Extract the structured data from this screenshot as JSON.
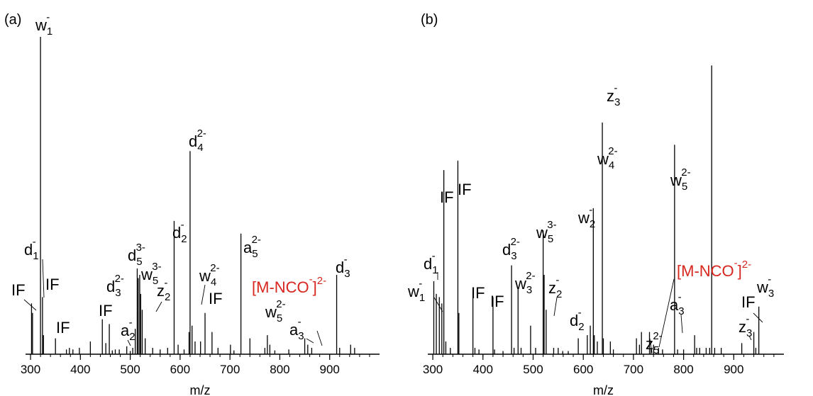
{
  "chart_data": [
    {
      "type": "bar",
      "panel_label": "(a)",
      "xlabel": "m/z",
      "ylabel": "",
      "xlim": [
        290,
        1000
      ],
      "ylim": [
        0,
        100
      ],
      "xticks": [
        300,
        400,
        500,
        600,
        700,
        800,
        900
      ],
      "peaks": [
        [
          302,
          16
        ],
        [
          304,
          13
        ],
        [
          320,
          100
        ],
        [
          324,
          18
        ],
        [
          326,
          6
        ],
        [
          350,
          5
        ],
        [
          372,
          1.5
        ],
        [
          378,
          2
        ],
        [
          385,
          1.5
        ],
        [
          398,
          2
        ],
        [
          420,
          4
        ],
        [
          444,
          11
        ],
        [
          451,
          3.5
        ],
        [
          458,
          9.5
        ],
        [
          464,
          1.2
        ],
        [
          470,
          1.5
        ],
        [
          478,
          1.5
        ],
        [
          493,
          2.5
        ],
        [
          500,
          1
        ],
        [
          505,
          2
        ],
        [
          510,
          8
        ],
        [
          514,
          27
        ],
        [
          516,
          24
        ],
        [
          519,
          25
        ],
        [
          521,
          19
        ],
        [
          524,
          14
        ],
        [
          530,
          5
        ],
        [
          545,
          2
        ],
        [
          560,
          1.5
        ],
        [
          575,
          2
        ],
        [
          588,
          42
        ],
        [
          596,
          3
        ],
        [
          608,
          1.5
        ],
        [
          618,
          7
        ],
        [
          620,
          64
        ],
        [
          624,
          9
        ],
        [
          630,
          4
        ],
        [
          641,
          4
        ],
        [
          650,
          13
        ],
        [
          664,
          7
        ],
        [
          676,
          2
        ],
        [
          701,
          3
        ],
        [
          708,
          1.2
        ],
        [
          722,
          38
        ],
        [
          740,
          5
        ],
        [
          770,
          2
        ],
        [
          775,
          6
        ],
        [
          780,
          3
        ],
        [
          790,
          1.2
        ],
        [
          818,
          1.5
        ],
        [
          850,
          5
        ],
        [
          856,
          3
        ],
        [
          864,
          2
        ],
        [
          914,
          25
        ],
        [
          920,
          2
        ],
        [
          942,
          3
        ],
        [
          950,
          2
        ]
      ],
      "annotations": [
        {
          "base": "w",
          "sub": "1",
          "sup": "-"
        },
        {
          "base": "d",
          "sub": "1",
          "sup": "-"
        },
        {
          "base": "IF",
          "sub": "",
          "sup": ""
        },
        {
          "base": "IF",
          "sub": "",
          "sup": ""
        },
        {
          "base": "IF",
          "sub": "",
          "sup": ""
        },
        {
          "base": "IF",
          "sub": "",
          "sup": ""
        },
        {
          "base": "d",
          "sub": "3",
          "sup": "2-"
        },
        {
          "base": "a",
          "sub": "2",
          "sup": "-"
        },
        {
          "base": "d",
          "sub": "5",
          "sup": "3-"
        },
        {
          "base": "w",
          "sub": "5",
          "sup": "3-"
        },
        {
          "base": "z",
          "sub": "2",
          "sup": "-"
        },
        {
          "base": "d",
          "sub": "2",
          "sup": "-"
        },
        {
          "base": "d",
          "sub": "4",
          "sup": "2-"
        },
        {
          "base": "w",
          "sub": "4",
          "sup": "2-"
        },
        {
          "base": "IF",
          "sub": "",
          "sup": ""
        },
        {
          "base": "a",
          "sub": "5",
          "sup": "2-"
        },
        {
          "base": "[M-NCO",
          "sub": "",
          "sup": "-",
          "tail": "]",
          "tailsup": "2-",
          "color": "#d7261e"
        },
        {
          "base": "w",
          "sub": "5",
          "sup": "2-"
        },
        {
          "base": "a",
          "sub": "3",
          "sup": "-"
        },
        {
          "base": "d",
          "sub": "3",
          "sup": "-"
        }
      ]
    },
    {
      "type": "bar",
      "panel_label": "(b)",
      "xlabel": "m/z",
      "ylabel": "",
      "xlim": [
        290,
        1000
      ],
      "ylim": [
        0,
        100
      ],
      "xticks": [
        300,
        400,
        500,
        600,
        700,
        800,
        900
      ],
      "peaks": [
        [
          302,
          23
        ],
        [
          307,
          19
        ],
        [
          313,
          18
        ],
        [
          318,
          16
        ],
        [
          322,
          58
        ],
        [
          326,
          4
        ],
        [
          335,
          2
        ],
        [
          350,
          61
        ],
        [
          352,
          13
        ],
        [
          380,
          20
        ],
        [
          384,
          2
        ],
        [
          392,
          1.5
        ],
        [
          420,
          18
        ],
        [
          423,
          1.5
        ],
        [
          440,
          1
        ],
        [
          457,
          28
        ],
        [
          462,
          2
        ],
        [
          470,
          21
        ],
        [
          476,
          2
        ],
        [
          495,
          9
        ],
        [
          505,
          2
        ],
        [
          520,
          39
        ],
        [
          522,
          25
        ],
        [
          526,
          14
        ],
        [
          541,
          2
        ],
        [
          550,
          2
        ],
        [
          559,
          1
        ],
        [
          570,
          1
        ],
        [
          590,
          5
        ],
        [
          608,
          6
        ],
        [
          614,
          9
        ],
        [
          620,
          46
        ],
        [
          622,
          6
        ],
        [
          628,
          4
        ],
        [
          638,
          73
        ],
        [
          640,
          5
        ],
        [
          654,
          4
        ],
        [
          660,
          1.5
        ],
        [
          706,
          5
        ],
        [
          712,
          3
        ],
        [
          716,
          7
        ],
        [
          732,
          7
        ],
        [
          735,
          2
        ],
        [
          740,
          3
        ],
        [
          750,
          2
        ],
        [
          758,
          1.5
        ],
        [
          782,
          66
        ],
        [
          788,
          1.5
        ],
        [
          800,
          1.5
        ],
        [
          822,
          6
        ],
        [
          826,
          2
        ],
        [
          832,
          2
        ],
        [
          845,
          2
        ],
        [
          852,
          2
        ],
        [
          856,
          91
        ],
        [
          862,
          2
        ],
        [
          875,
          2
        ],
        [
          916,
          3.5
        ],
        [
          940,
          7
        ],
        [
          944,
          2
        ],
        [
          950,
          15
        ]
      ],
      "annotations": [
        {
          "base": "w",
          "sub": "1",
          "sup": "-"
        },
        {
          "base": "d",
          "sub": "1",
          "sup": "-"
        },
        {
          "base": "IF",
          "sub": "",
          "sup": ""
        },
        {
          "base": "IF",
          "sub": "",
          "sup": ""
        },
        {
          "base": "IF",
          "sub": "",
          "sup": ""
        },
        {
          "base": "IF",
          "sub": "",
          "sup": ""
        },
        {
          "base": "d",
          "sub": "3",
          "sup": "2-"
        },
        {
          "base": "w",
          "sub": "3",
          "sup": "2-"
        },
        {
          "base": "w",
          "sub": "5",
          "sup": "3-"
        },
        {
          "base": "z",
          "sub": "2",
          "sup": "-"
        },
        {
          "base": "d",
          "sub": "2",
          "sup": "-"
        },
        {
          "base": "w",
          "sub": "2",
          "sup": "-"
        },
        {
          "base": "w",
          "sub": "4",
          "sup": "2-"
        },
        {
          "base": "z",
          "sub": "5",
          "sup": "2-"
        },
        {
          "base": "w",
          "sub": "5",
          "sup": "2-"
        },
        {
          "base": "a",
          "sub": "3",
          "sup": "-"
        },
        {
          "base": "z",
          "sub": "3",
          "sup": "-"
        },
        {
          "base": "[M-NCO",
          "sub": "",
          "sup": "-",
          "tail": "]",
          "tailsup": "2-",
          "color": "#d7261e"
        },
        {
          "base": "IF",
          "sub": "",
          "sup": ""
        },
        {
          "base": "w",
          "sub": "3",
          "sup": "-"
        },
        {
          "base": "z",
          "sub": "3",
          "sup": "-"
        }
      ]
    }
  ]
}
